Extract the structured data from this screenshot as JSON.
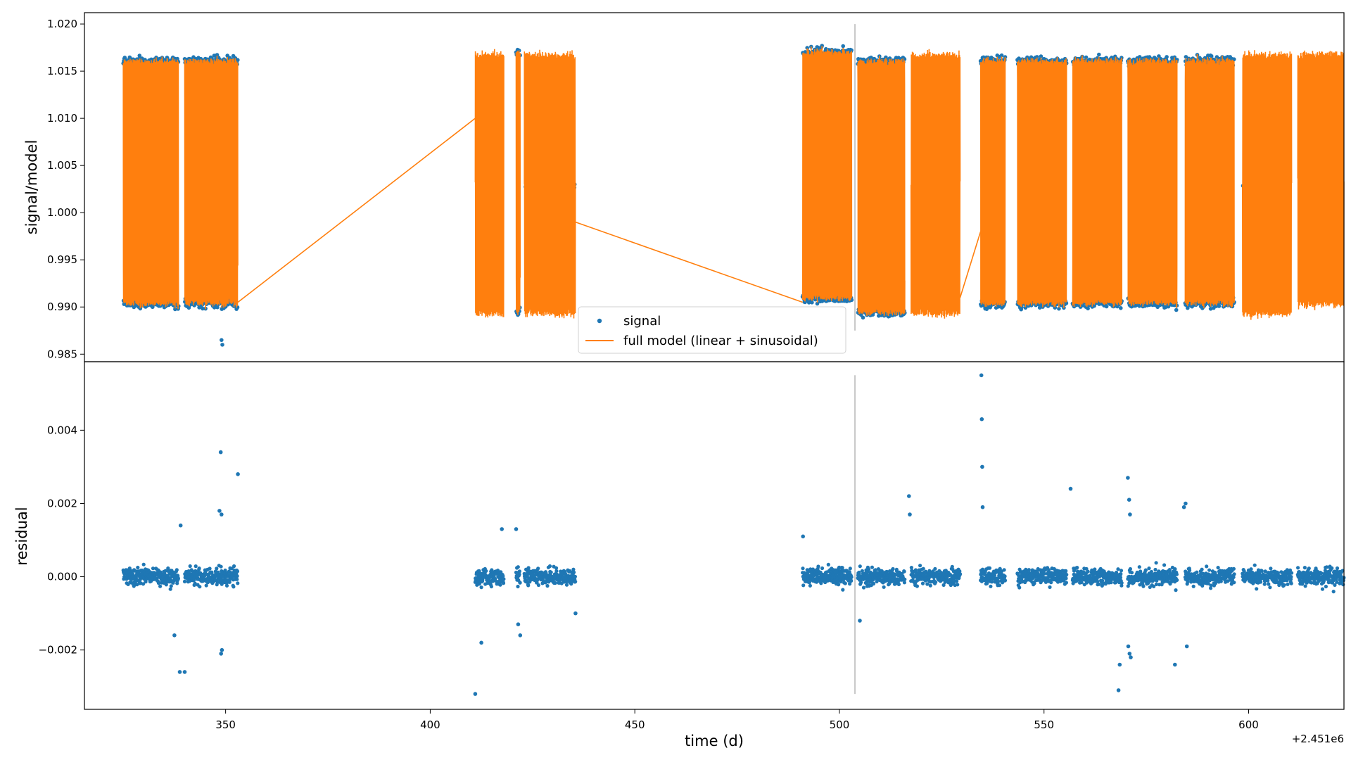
{
  "chart_data": [
    {
      "type": "line",
      "panel": "top",
      "ylabel": "signal/model",
      "ylim": [
        0.9842,
        1.0212
      ],
      "xlim": [
        315.5,
        623.3
      ],
      "yticks": [
        "0.985",
        "0.990",
        "0.995",
        "1.000",
        "1.005",
        "1.010",
        "1.015",
        "1.020"
      ],
      "ytick_values": [
        0.985,
        0.99,
        0.995,
        1.0,
        1.005,
        1.01,
        1.015,
        1.02
      ],
      "legend": {
        "placement": "lower center",
        "entries": [
          "signal",
          "full model (linear + sinusoidal)"
        ]
      },
      "series": [
        {
          "name": "signal",
          "style": "scatter",
          "color": "#1f77b4"
        },
        {
          "name": "full model (linear + sinusoidal)",
          "style": "line",
          "color": "#ff7f0e"
        }
      ],
      "segments": [
        {
          "x": [
            325.0,
            338.5
          ],
          "low": 0.989,
          "high": 1.017
        },
        {
          "x": [
            340.0,
            353.0
          ],
          "low": 0.989,
          "high": 1.017
        },
        {
          "x": [
            411.0,
            418.0
          ],
          "low": 0.989,
          "high": 1.017
        },
        {
          "x": [
            421.0,
            422.0
          ],
          "low": 0.988,
          "high": 1.018
        },
        {
          "x": [
            423.0,
            435.5
          ],
          "low": 0.989,
          "high": 1.017
        },
        {
          "x": [
            491.0,
            503.0
          ],
          "low": 0.9895,
          "high": 1.018
        },
        {
          "x": [
            504.5,
            516.0
          ],
          "low": 0.988,
          "high": 1.017
        },
        {
          "x": [
            517.5,
            529.5
          ],
          "low": 0.989,
          "high": 1.017
        },
        {
          "x": [
            534.5,
            540.5
          ],
          "low": 0.989,
          "high": 1.017
        },
        {
          "x": [
            543.5,
            555.5
          ],
          "low": 0.989,
          "high": 1.017
        },
        {
          "x": [
            557.0,
            569.0
          ],
          "low": 0.989,
          "high": 1.017
        },
        {
          "x": [
            570.5,
            582.5
          ],
          "low": 0.989,
          "high": 1.017
        },
        {
          "x": [
            584.5,
            596.5
          ],
          "low": 0.989,
          "high": 1.017
        },
        {
          "x": [
            598.5,
            610.5
          ],
          "low": 0.989,
          "high": 1.017
        },
        {
          "x": [
            612.0,
            623.3
          ],
          "low": 0.99,
          "high": 1.017
        }
      ],
      "model_bridges": [
        {
          "from": [
            353.0,
            0.9905
          ],
          "to": [
            411.0,
            1.01
          ]
        },
        {
          "from": [
            435.5,
            0.999
          ],
          "to": [
            491.0,
            0.9905
          ]
        },
        {
          "from": [
            529.5,
            0.991
          ],
          "to": [
            534.5,
            0.998
          ]
        }
      ],
      "vertical_line_x": 503.8
    },
    {
      "type": "scatter",
      "panel": "bottom",
      "ylabel": "residual",
      "xlabel": "time (d)",
      "x_offset_text": "+2.451e6",
      "ylim": [
        -0.00362,
        0.00587
      ],
      "xlim": [
        315.5,
        623.3
      ],
      "yticks": [
        "−0.002",
        "0.000",
        "0.002",
        "0.004"
      ],
      "ytick_values": [
        -0.002,
        0.0,
        0.002,
        0.004
      ],
      "xticks": [
        "350",
        "400",
        "450",
        "500",
        "550",
        "600"
      ],
      "xtick_values": [
        350,
        400,
        450,
        500,
        550,
        600
      ],
      "series": [
        {
          "name": "residual",
          "color": "#1f77b4"
        }
      ],
      "outliers": [
        [
          348.8,
          0.0034
        ],
        [
          353.0,
          0.0028
        ],
        [
          348.5,
          0.0018
        ],
        [
          349.0,
          0.0017
        ],
        [
          339.0,
          0.0014
        ],
        [
          337.5,
          -0.0016
        ],
        [
          338.8,
          -0.0026
        ],
        [
          340.0,
          -0.0026
        ],
        [
          348.9,
          -0.0021
        ],
        [
          349.1,
          -0.002
        ],
        [
          411.0,
          -0.0032
        ],
        [
          412.5,
          -0.0018
        ],
        [
          417.5,
          0.0013
        ],
        [
          421.0,
          0.0013
        ],
        [
          421.5,
          -0.0013
        ],
        [
          422.0,
          -0.0016
        ],
        [
          435.5,
          -0.001
        ],
        [
          517.0,
          0.0022
        ],
        [
          517.2,
          0.0017
        ],
        [
          534.7,
          0.0055
        ],
        [
          534.8,
          0.0043
        ],
        [
          534.9,
          0.003
        ],
        [
          535.0,
          0.0019
        ],
        [
          556.5,
          0.0024
        ],
        [
          570.5,
          0.0027
        ],
        [
          570.8,
          0.0021
        ],
        [
          571.0,
          0.0017
        ],
        [
          568.5,
          -0.0024
        ],
        [
          570.6,
          -0.0019
        ],
        [
          570.9,
          -0.0021
        ],
        [
          571.2,
          -0.0022
        ],
        [
          568.2,
          -0.0031
        ],
        [
          582.0,
          -0.0024
        ],
        [
          584.2,
          0.0019
        ],
        [
          584.6,
          0.002
        ],
        [
          584.9,
          -0.0019
        ],
        [
          505.0,
          -0.0012
        ],
        [
          491.1,
          0.0011
        ]
      ],
      "vertical_line_x": 503.8
    }
  ]
}
